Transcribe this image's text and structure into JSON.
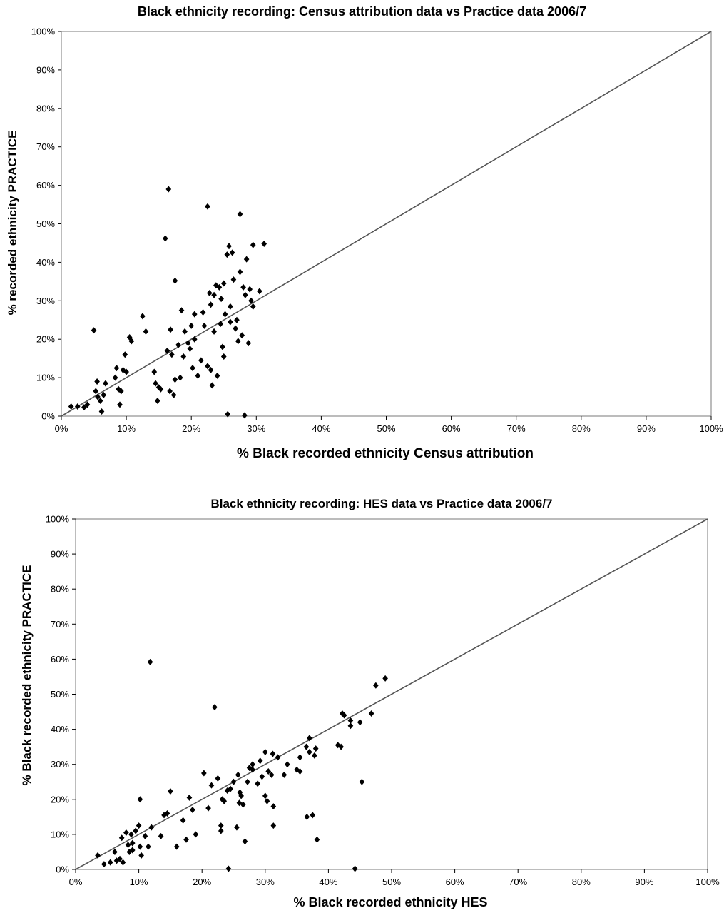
{
  "chart_data": [
    {
      "type": "scatter",
      "title": "Black ethnicity recording: Census attribution data vs Practice data 2006/7",
      "xlabel": "% Black recorded ethnicity Census attribution",
      "ylabel": "% recorded ethnicity PRACTICE",
      "xlim": [
        0,
        100
      ],
      "ylim": [
        0,
        100
      ],
      "x_ticks": [
        "0%",
        "10%",
        "20%",
        "30%",
        "40%",
        "50%",
        "60%",
        "70%",
        "80%",
        "90%",
        "100%"
      ],
      "y_ticks": [
        "0%",
        "10%",
        "20%",
        "30%",
        "40%",
        "50%",
        "60%",
        "70%",
        "80%",
        "90%",
        "100%"
      ],
      "grid": false,
      "legend": false,
      "reference_line": {
        "from": [
          0,
          0
        ],
        "to": [
          100,
          100
        ]
      },
      "points": [
        [
          1.5,
          2.5
        ],
        [
          2.5,
          2.5
        ],
        [
          3.5,
          2.3
        ],
        [
          4,
          3
        ],
        [
          5,
          22.3
        ],
        [
          5.3,
          6.5
        ],
        [
          5.5,
          9
        ],
        [
          5.6,
          5
        ],
        [
          6,
          4
        ],
        [
          6.2,
          1.2
        ],
        [
          6.5,
          5.5
        ],
        [
          6.8,
          8.5
        ],
        [
          8.3,
          10
        ],
        [
          8.5,
          12.5
        ],
        [
          8.8,
          7
        ],
        [
          9,
          3
        ],
        [
          9.2,
          6.5
        ],
        [
          9.5,
          12
        ],
        [
          9.8,
          16
        ],
        [
          10,
          11.5
        ],
        [
          10.5,
          20.5
        ],
        [
          10.8,
          19.5
        ],
        [
          14.3,
          11.5
        ],
        [
          14.5,
          8.5
        ],
        [
          14.8,
          4
        ],
        [
          15,
          7.5
        ],
        [
          15.3,
          7
        ],
        [
          16,
          46.2
        ],
        [
          16.3,
          17
        ],
        [
          16.5,
          59
        ],
        [
          16.7,
          6.5
        ],
        [
          16.8,
          22.5
        ],
        [
          17,
          16
        ],
        [
          17.3,
          5.5
        ],
        [
          17.5,
          35.2
        ],
        [
          17.5,
          9.5
        ],
        [
          18,
          18.5
        ],
        [
          18.3,
          10
        ],
        [
          18.5,
          27.5
        ],
        [
          18.8,
          15.5
        ],
        [
          19,
          22
        ],
        [
          19.5,
          19
        ],
        [
          19.8,
          17.5
        ],
        [
          20,
          23.5
        ],
        [
          20.2,
          12.5
        ],
        [
          20.5,
          26.5
        ],
        [
          20.5,
          20
        ],
        [
          21,
          10.5
        ],
        [
          21.5,
          14.5
        ],
        [
          21.8,
          27
        ],
        [
          22,
          23.5
        ],
        [
          22.5,
          54.5
        ],
        [
          22.5,
          13
        ],
        [
          22.8,
          32
        ],
        [
          23,
          29
        ],
        [
          23,
          12
        ],
        [
          23.2,
          8
        ],
        [
          23.5,
          31.5
        ],
        [
          23.5,
          22
        ],
        [
          23.8,
          34
        ],
        [
          24,
          10.5
        ],
        [
          24.3,
          33.5
        ],
        [
          24.5,
          24
        ],
        [
          24.6,
          30.5
        ],
        [
          24.8,
          18
        ],
        [
          25,
          15.5
        ],
        [
          25,
          34.5
        ],
        [
          25.2,
          26.5
        ],
        [
          25.5,
          42
        ],
        [
          25.6,
          0.5
        ],
        [
          25.8,
          44.2
        ],
        [
          26,
          24.5
        ],
        [
          26,
          28.5
        ],
        [
          26.3,
          42.5
        ],
        [
          26.5,
          35.5
        ],
        [
          27,
          25
        ],
        [
          27.2,
          19.5
        ],
        [
          27.5,
          37.5
        ],
        [
          27.5,
          52.5
        ],
        [
          27.8,
          21
        ],
        [
          28,
          33.5
        ],
        [
          28.2,
          0.2
        ],
        [
          28.3,
          31.5
        ],
        [
          28.5,
          40.8
        ],
        [
          28.8,
          19
        ],
        [
          29,
          33
        ],
        [
          29.2,
          30
        ],
        [
          29.5,
          44.5
        ],
        [
          29.5,
          28.5
        ],
        [
          30.5,
          32.5
        ],
        [
          31.2,
          44.8
        ],
        [
          12.5,
          26
        ],
        [
          13,
          22
        ],
        [
          26.8,
          22.8
        ]
      ]
    },
    {
      "type": "scatter",
      "title": "Black ethnicity recording: HES data vs Practice data 2006/7",
      "xlabel": "% Black recorded ethnicity HES",
      "ylabel": "% Black recorded ethnicity PRACTICE",
      "xlim": [
        0,
        100
      ],
      "ylim": [
        0,
        100
      ],
      "x_ticks": [
        "0%",
        "10%",
        "20%",
        "30%",
        "40%",
        "50%",
        "60%",
        "70%",
        "80%",
        "90%",
        "100%"
      ],
      "y_ticks": [
        "0%",
        "10%",
        "20%",
        "30%",
        "40%",
        "50%",
        "60%",
        "70%",
        "80%",
        "90%",
        "100%"
      ],
      "grid": false,
      "legend": false,
      "reference_line": {
        "from": [
          0,
          0
        ],
        "to": [
          100,
          100
        ]
      },
      "points": [
        [
          3.5,
          4
        ],
        [
          4.5,
          1.5
        ],
        [
          5.5,
          2
        ],
        [
          6.2,
          5
        ],
        [
          6.5,
          2.5
        ],
        [
          7,
          3
        ],
        [
          7.3,
          9
        ],
        [
          7.5,
          2
        ],
        [
          8,
          10.5
        ],
        [
          8.3,
          7
        ],
        [
          8.5,
          5
        ],
        [
          8.8,
          10
        ],
        [
          9,
          5.5
        ],
        [
          9.5,
          11
        ],
        [
          10,
          12.5
        ],
        [
          10.2,
          6.5
        ],
        [
          10.2,
          20
        ],
        [
          10.4,
          4
        ],
        [
          11,
          9.5
        ],
        [
          11.5,
          6.5
        ],
        [
          11.8,
          59.2
        ],
        [
          12,
          12
        ],
        [
          13.5,
          9.5
        ],
        [
          14,
          15.5
        ],
        [
          14.5,
          16
        ],
        [
          15,
          22.3
        ],
        [
          16,
          6.5
        ],
        [
          17,
          14
        ],
        [
          17.5,
          8.5
        ],
        [
          18,
          20.5
        ],
        [
          18.5,
          17
        ],
        [
          19,
          10
        ],
        [
          20.3,
          27.5
        ],
        [
          21,
          17.5
        ],
        [
          21.5,
          24
        ],
        [
          22,
          46.3
        ],
        [
          22.5,
          26
        ],
        [
          23,
          11
        ],
        [
          23,
          12.5
        ],
        [
          23.2,
          20
        ],
        [
          23.5,
          19.5
        ],
        [
          24,
          22.5
        ],
        [
          24.2,
          0.2
        ],
        [
          24.5,
          23
        ],
        [
          25,
          25
        ],
        [
          25.5,
          12
        ],
        [
          25.7,
          27
        ],
        [
          25.9,
          19
        ],
        [
          26,
          22
        ],
        [
          26.2,
          21
        ],
        [
          26.5,
          18.5
        ],
        [
          26.8,
          8
        ],
        [
          27.2,
          25
        ],
        [
          28,
          28.5
        ],
        [
          28,
          30
        ],
        [
          28.8,
          24.5
        ],
        [
          29.2,
          31
        ],
        [
          29.5,
          26.5
        ],
        [
          30,
          21
        ],
        [
          30,
          33.5
        ],
        [
          30.3,
          19.5
        ],
        [
          30.5,
          28
        ],
        [
          31,
          27
        ],
        [
          31.2,
          33
        ],
        [
          31.3,
          18
        ],
        [
          31.3,
          12.5
        ],
        [
          32,
          32
        ],
        [
          33,
          27
        ],
        [
          33.5,
          30
        ],
        [
          35,
          28.5
        ],
        [
          35.5,
          32
        ],
        [
          36.5,
          35
        ],
        [
          36.6,
          15
        ],
        [
          37,
          37.5
        ],
        [
          37,
          33.5
        ],
        [
          37.5,
          15.5
        ],
        [
          37.8,
          32.5
        ],
        [
          38,
          34.5
        ],
        [
          38.2,
          8.5
        ],
        [
          41.5,
          35.5
        ],
        [
          42,
          35
        ],
        [
          42.2,
          44.5
        ],
        [
          42.5,
          44
        ],
        [
          43.5,
          41
        ],
        [
          43.5,
          42.5
        ],
        [
          44.2,
          0.2
        ],
        [
          45,
          42
        ],
        [
          45.3,
          25
        ],
        [
          46.8,
          44.5
        ],
        [
          47.5,
          52.5
        ],
        [
          49,
          54.5
        ],
        [
          35.5,
          28
        ],
        [
          27.5,
          29
        ],
        [
          9,
          7.5
        ]
      ]
    }
  ]
}
